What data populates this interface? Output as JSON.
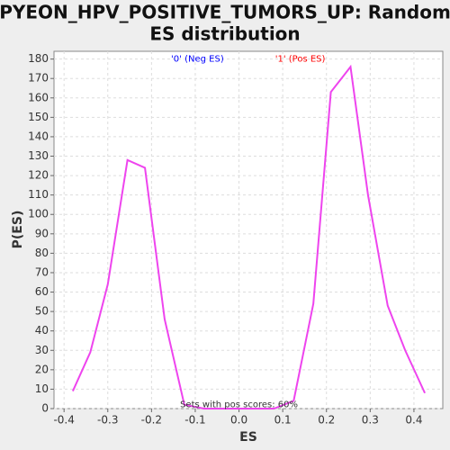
{
  "chart_data": {
    "type": "line",
    "title": [
      "PYEON_HPV_POSITIVE_TUMORS_UP: Random",
      "ES distribution"
    ],
    "x_label": "ES",
    "y_label": "P(ES)",
    "annotations": [
      {
        "text": "'0' (Neg ES)",
        "color": "#0000ff",
        "x": -0.095,
        "y": 180
      },
      {
        "text": "'1' (Pos ES)",
        "color": "#ff0000",
        "x": 0.14,
        "y": 180
      },
      {
        "text": "Sets with pos scores: 60%",
        "color": "#333333",
        "x": 0.0,
        "y": 2
      }
    ],
    "series": [
      {
        "name": "ES",
        "color": "#ee44ee",
        "x": [
          -0.38,
          -0.34,
          -0.3,
          -0.255,
          -0.215,
          -0.17,
          -0.125,
          -0.08,
          -0.04,
          0,
          0.04,
          0.08,
          0.125,
          0.17,
          0.21,
          0.255,
          0.295,
          0.34,
          0.38,
          0.425
        ],
        "values": [
          9,
          29,
          64,
          128,
          124,
          46,
          2,
          0,
          0,
          0,
          0,
          0,
          4,
          54,
          163,
          176,
          110,
          53,
          30,
          8
        ]
      }
    ],
    "xlim": [
      -0.423,
      0.466
    ],
    "ylim": [
      0,
      184
    ],
    "xticks": [
      -0.4,
      -0.3,
      -0.2,
      -0.1,
      {
        "value": 0,
        "label": "0.0"
      },
      0.1,
      0.2,
      0.3,
      0.4
    ],
    "yticks": [
      0,
      10,
      20,
      30,
      40,
      50,
      60,
      70,
      80,
      90,
      100,
      110,
      120,
      130,
      140,
      150,
      160,
      170,
      180
    ],
    "grid": true
  }
}
